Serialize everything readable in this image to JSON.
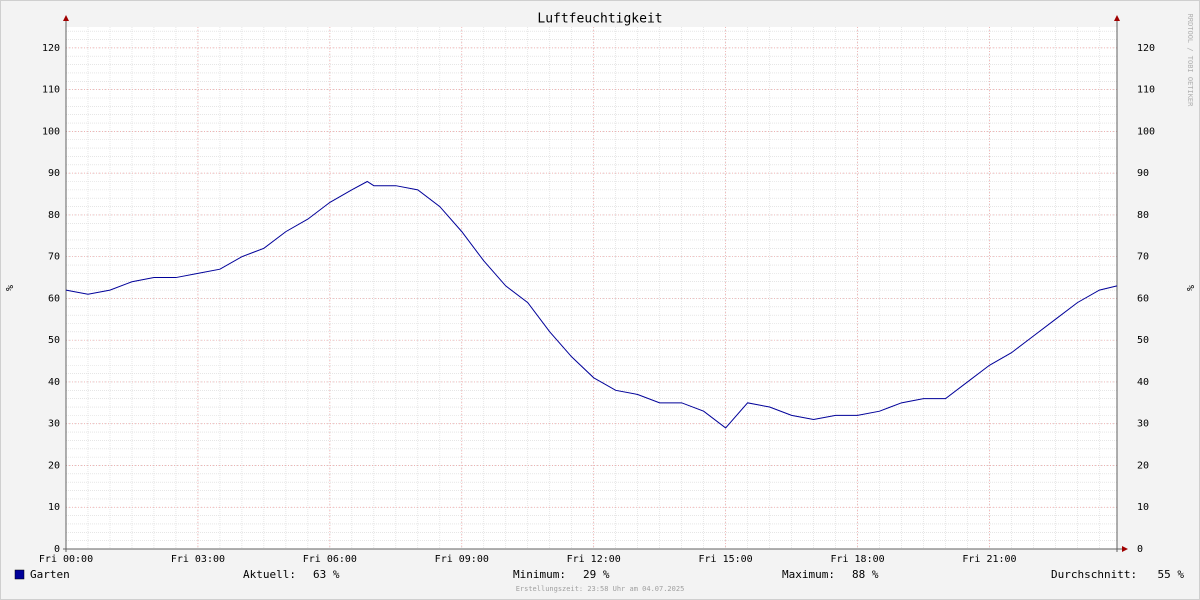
{
  "chart_data": {
    "type": "line",
    "title": "Luftfeuchtigkeit",
    "y_label": "%",
    "watermark": "RRDTOOL / TOBI OETIKER",
    "x": [
      0,
      0.5,
      1,
      1.5,
      2,
      2.5,
      3,
      3.5,
      4,
      4.5,
      5,
      5.5,
      6,
      6.5,
      6.85,
      7,
      7.5,
      8,
      8.5,
      9,
      9.5,
      10,
      10.5,
      11,
      11.5,
      12,
      12.5,
      13,
      13.5,
      14,
      14.5,
      15,
      15.5,
      16,
      16.5,
      17,
      17.5,
      18,
      18.5,
      19,
      19.5,
      20,
      20.5,
      21,
      21.5,
      22,
      22.5,
      23,
      23.5,
      23.9
    ],
    "series": [
      {
        "name": "Garten",
        "color": "#000099",
        "values": [
          62,
          61,
          62,
          64,
          65,
          65,
          66,
          67,
          70,
          72,
          76,
          79,
          83,
          86,
          88,
          87,
          87,
          86,
          82,
          76,
          69,
          63,
          59,
          52,
          46,
          41,
          38,
          37,
          35,
          35,
          33,
          29,
          35,
          34,
          32,
          31,
          32,
          32,
          33,
          35,
          36,
          36,
          40,
          44,
          47,
          51,
          55,
          59,
          62,
          63
        ]
      }
    ],
    "xlim": [
      0,
      23.9
    ],
    "xticks": [
      {
        "value": 0,
        "label": "Fri 00:00"
      },
      {
        "value": 3,
        "label": "Fri 03:00"
      },
      {
        "value": 6,
        "label": "Fri 06:00"
      },
      {
        "value": 9,
        "label": "Fri 09:00"
      },
      {
        "value": 12,
        "label": "Fri 12:00"
      },
      {
        "value": 15,
        "label": "Fri 15:00"
      },
      {
        "value": 18,
        "label": "Fri 18:00"
      },
      {
        "value": 21,
        "label": "Fri 21:00"
      }
    ],
    "ylim": [
      0,
      125
    ],
    "yticks": [
      0,
      10,
      20,
      30,
      40,
      50,
      60,
      70,
      80,
      90,
      100,
      110,
      120
    ],
    "grid": true,
    "minor_grid": {
      "xstep": 0.5,
      "ystep": 2
    },
    "stats": [
      {
        "label": "Aktuell:",
        "value": "63 %"
      },
      {
        "label": "Minimum:",
        "value": "29 %"
      },
      {
        "label": "Maximum:",
        "value": "88 %"
      },
      {
        "label": "Durchschnitt:",
        "value": "55 %"
      }
    ],
    "footer": "Erstellungszeit: 23:58 Uhr am 04.07.2025"
  }
}
